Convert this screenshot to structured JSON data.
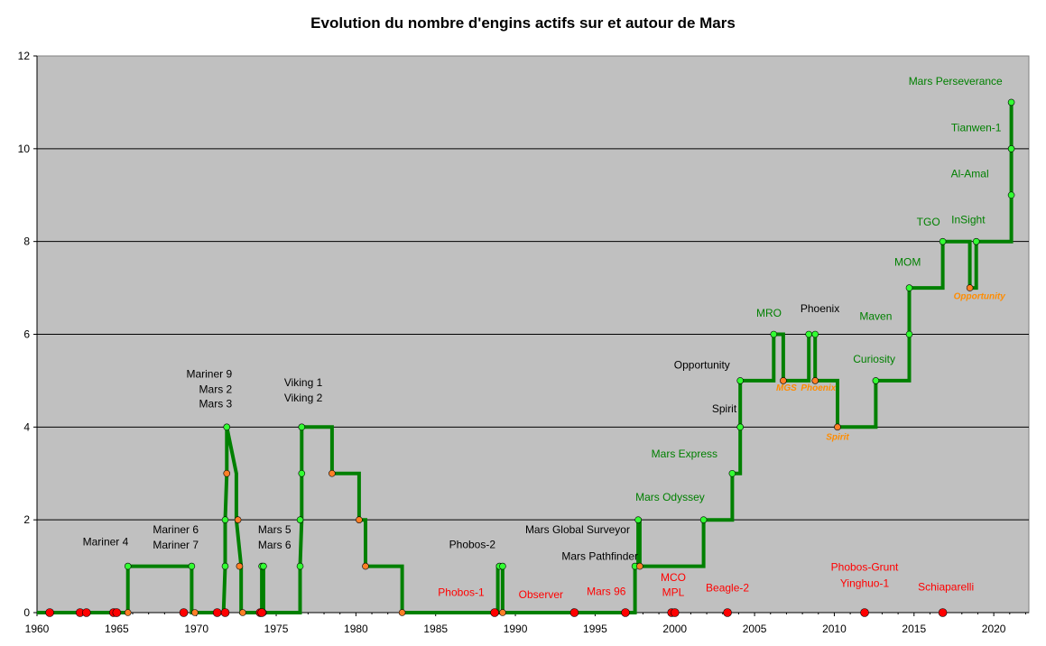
{
  "chart_data": {
    "type": "line",
    "title": "Evolution du nombre d'engins actifs sur et autour de Mars",
    "xlabel": "",
    "ylabel": "",
    "xlim": [
      1960,
      2022.2
    ],
    "ylim": [
      0,
      12
    ],
    "x_ticks": [
      1960,
      1965,
      1970,
      1975,
      1980,
      1985,
      1990,
      1995,
      2000,
      2005,
      2010,
      2015,
      2020
    ],
    "y_ticks": [
      0,
      2,
      4,
      6,
      8,
      10,
      12
    ],
    "grid": true,
    "plot_background": "#c0c0c0",
    "line_color": "#008000",
    "series": [
      {
        "values_x": [
          1960,
          1965.7,
          1965.7,
          1969.7,
          1969.7,
          1971.7,
          1971.8,
          1971.8,
          1971.9,
          1971.9,
          1972.5,
          1972.5,
          1972.8,
          1972.8,
          1974.1,
          1974.1,
          1974.2,
          1974.2,
          1976.5,
          1976.5,
          1976.6,
          1976.6,
          1978.5,
          1978.5,
          1980.2,
          1980.2,
          1980.6,
          1980.6,
          1982.9,
          1982.9,
          1988.9,
          1988.9,
          1989.2,
          1989.2,
          1997.5,
          1997.5,
          1997.7,
          1997.7,
          1997.8,
          1997.8,
          2001.8,
          2001.8,
          2003.6,
          2003.6,
          2004.1,
          2004.1,
          2006.2,
          2006.2,
          2006.8,
          2006.8,
          2008.4,
          2008.4,
          2008.8,
          2008.8,
          2010.2,
          2010.2,
          2012.6,
          2012.6,
          2014.7,
          2014.7,
          2016.8,
          2016.8,
          2018.5,
          2018.5,
          2018.9,
          2018.9,
          2021.1,
          2021.1,
          2021.1,
          2021.1
        ],
        "values_y": [
          0,
          0,
          1,
          1,
          0,
          0,
          1,
          2,
          3,
          4,
          3,
          2,
          1,
          0,
          0,
          1,
          1,
          0,
          0,
          1,
          2,
          4,
          4,
          3,
          3,
          2,
          2,
          1,
          1,
          0,
          0,
          1,
          1,
          0,
          0,
          1,
          1,
          2,
          2,
          1,
          1,
          2,
          2,
          3,
          3,
          5,
          5,
          6,
          6,
          5,
          5,
          6,
          6,
          5,
          5,
          4,
          4,
          5,
          5,
          7,
          7,
          8,
          8,
          7,
          7,
          8,
          8,
          9,
          10,
          11
        ]
      }
    ],
    "markers": {
      "green": [
        [
          1965.7,
          1
        ],
        [
          1969.7,
          1
        ],
        [
          1971.8,
          1
        ],
        [
          1971.8,
          2
        ],
        [
          1971.9,
          4
        ],
        [
          1974.1,
          1
        ],
        [
          1974.2,
          1
        ],
        [
          1976.5,
          1
        ],
        [
          1976.5,
          2
        ],
        [
          1976.6,
          3
        ],
        [
          1976.6,
          4
        ],
        [
          1989.0,
          1
        ],
        [
          1989.2,
          1
        ],
        [
          1997.5,
          1
        ],
        [
          1997.7,
          2
        ],
        [
          2001.8,
          2
        ],
        [
          2003.6,
          3
        ],
        [
          2004.1,
          4
        ],
        [
          2004.1,
          5
        ],
        [
          2006.2,
          6
        ],
        [
          2008.4,
          6
        ],
        [
          2008.8,
          6
        ],
        [
          2012.6,
          5
        ],
        [
          2014.7,
          6
        ],
        [
          2014.7,
          7
        ],
        [
          2016.8,
          8
        ],
        [
          2018.9,
          8
        ],
        [
          2021.1,
          9
        ],
        [
          2021.1,
          10
        ],
        [
          2021.1,
          11
        ]
      ],
      "orange": [
        [
          1965.7,
          0
        ],
        [
          1969.9,
          0
        ],
        [
          1971.9,
          3
        ],
        [
          1972.6,
          2
        ],
        [
          1972.7,
          1
        ],
        [
          1972.9,
          0
        ],
        [
          1974.2,
          0
        ],
        [
          1978.5,
          3
        ],
        [
          1980.2,
          2
        ],
        [
          1980.6,
          1
        ],
        [
          1982.9,
          0
        ],
        [
          1989.2,
          0
        ],
        [
          1997.8,
          1
        ],
        [
          2006.8,
          5
        ],
        [
          2008.8,
          5
        ],
        [
          2010.2,
          4
        ],
        [
          2018.5,
          7
        ]
      ],
      "red": [
        [
          1960.8,
          0
        ],
        [
          1962.7,
          0
        ],
        [
          1963.1,
          0
        ],
        [
          1964.8,
          0
        ],
        [
          1965.0,
          0
        ],
        [
          1969.2,
          0
        ],
        [
          1971.3,
          0
        ],
        [
          1971.8,
          0
        ],
        [
          1974.0,
          0
        ],
        [
          1974.1,
          0
        ],
        [
          1988.7,
          0
        ],
        [
          1993.7,
          0
        ],
        [
          1996.9,
          0
        ],
        [
          1999.8,
          0
        ],
        [
          2000.0,
          0
        ],
        [
          2003.3,
          0
        ],
        [
          2011.9,
          0
        ],
        [
          2016.8,
          0
        ]
      ]
    },
    "annotations": [
      {
        "text": "Mariner 4",
        "x": 1964.3,
        "y": 1.45,
        "color": "#000000"
      },
      {
        "text": "Mariner 6",
        "x": 1968.7,
        "y": 1.71,
        "color": "#000000"
      },
      {
        "text": "Mariner 7",
        "x": 1968.7,
        "y": 1.38,
        "color": "#000000"
      },
      {
        "text": "Mariner 9",
        "x": 1970.8,
        "y": 5.07,
        "color": "#000000"
      },
      {
        "text": "Mars 2",
        "x": 1971.2,
        "y": 4.74,
        "color": "#000000"
      },
      {
        "text": "Mars 3",
        "x": 1971.2,
        "y": 4.42,
        "color": "#000000"
      },
      {
        "text": "Mars 5",
        "x": 1974.9,
        "y": 1.71,
        "color": "#000000"
      },
      {
        "text": "Mars 6",
        "x": 1974.9,
        "y": 1.38,
        "color": "#000000"
      },
      {
        "text": "Viking 1",
        "x": 1976.7,
        "y": 4.88,
        "color": "#000000"
      },
      {
        "text": "Viking 2",
        "x": 1976.7,
        "y": 4.55,
        "color": "#000000"
      },
      {
        "text": "Phobos-2",
        "x": 1987.3,
        "y": 1.39,
        "color": "#000000"
      },
      {
        "text": "Phobos-1",
        "x": 1986.6,
        "y": 0.36,
        "color": "#ff0000"
      },
      {
        "text": "Observer",
        "x": 1991.6,
        "y": 0.31,
        "color": "#ff0000"
      },
      {
        "text": "Mars 96",
        "x": 1995.7,
        "y": 0.38,
        "color": "#ff0000"
      },
      {
        "text": "Mars Global Surveyor",
        "x": 1993.9,
        "y": 1.71,
        "color": "#000000"
      },
      {
        "text": "Mars Pathfinder",
        "x": 1995.3,
        "y": 1.14,
        "color": "#000000"
      },
      {
        "text": "Mars Odyssey",
        "x": 1999.7,
        "y": 2.41,
        "color": "#008000"
      },
      {
        "text": "MCO",
        "x": 1999.9,
        "y": 0.68,
        "color": "#ff0000"
      },
      {
        "text": "MPL",
        "x": 1999.9,
        "y": 0.36,
        "color": "#ff0000"
      },
      {
        "text": "Beagle-2",
        "x": 2003.3,
        "y": 0.46,
        "color": "#ff0000"
      },
      {
        "text": "Mars Express",
        "x": 2000.6,
        "y": 3.35,
        "color": "#008000"
      },
      {
        "text": "Spirit",
        "x": 2003.1,
        "y": 4.32,
        "color": "#000000"
      },
      {
        "text": "Opportunity",
        "x": 2001.7,
        "y": 5.26,
        "color": "#000000"
      },
      {
        "text": "MRO",
        "x": 2005.9,
        "y": 6.38,
        "color": "#008000"
      },
      {
        "text": "Phoenix",
        "x": 2009.1,
        "y": 6.48,
        "color": "#000000"
      },
      {
        "text": "MGS",
        "x": 2007.0,
        "y": 4.78,
        "color": "#ff8c00",
        "small": true
      },
      {
        "text": "Phoenix",
        "x": 2009.0,
        "y": 4.78,
        "color": "#ff8c00",
        "small": true
      },
      {
        "text": "Spirit",
        "x": 2010.2,
        "y": 3.72,
        "color": "#ff8c00",
        "small": true
      },
      {
        "text": "Curiosity",
        "x": 2012.5,
        "y": 5.39,
        "color": "#008000"
      },
      {
        "text": "Maven",
        "x": 2012.6,
        "y": 6.31,
        "color": "#008000"
      },
      {
        "text": "MOM",
        "x": 2014.6,
        "y": 7.48,
        "color": "#008000"
      },
      {
        "text": "TGO",
        "x": 2015.9,
        "y": 8.34,
        "color": "#008000"
      },
      {
        "text": "Opportunity",
        "x": 2019.1,
        "y": 6.76,
        "color": "#ff8c00",
        "small": true
      },
      {
        "text": "InSight",
        "x": 2018.4,
        "y": 8.39,
        "color": "#008000"
      },
      {
        "text": "Al-Amal",
        "x": 2018.5,
        "y": 9.38,
        "color": "#008000"
      },
      {
        "text": "Tianwen-1",
        "x": 2018.9,
        "y": 10.38,
        "color": "#008000"
      },
      {
        "text": "Mars Perseverance",
        "x": 2017.6,
        "y": 11.38,
        "color": "#008000"
      },
      {
        "text": "Phobos-Grunt",
        "x": 2011.9,
        "y": 0.9,
        "color": "#ff0000"
      },
      {
        "text": "Yinghuo-1",
        "x": 2011.9,
        "y": 0.55,
        "color": "#ff0000"
      },
      {
        "text": "Schiaparelli",
        "x": 2017.0,
        "y": 0.48,
        "color": "#ff0000"
      }
    ]
  }
}
